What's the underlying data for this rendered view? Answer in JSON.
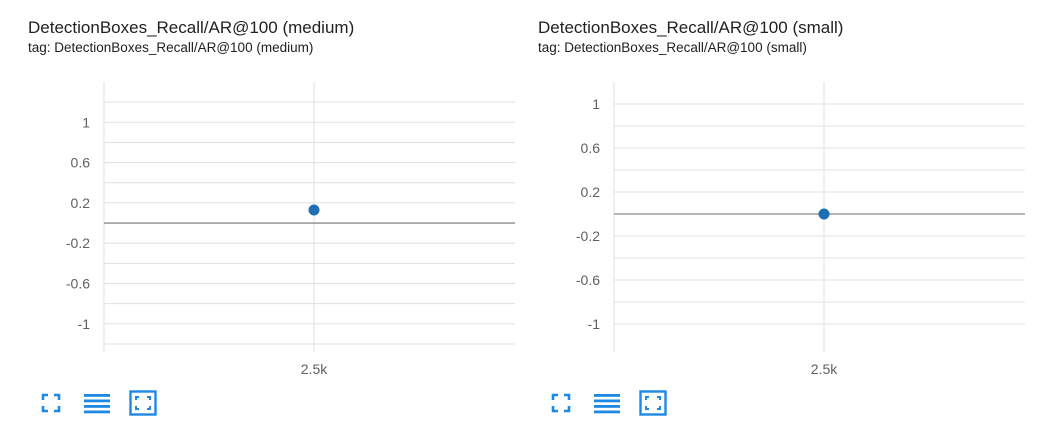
{
  "charts": [
    {
      "title": "DetectionBoxes_Recall/AR@100 (medium)",
      "tag": "tag: DetectionBoxes_Recall/AR@100 (medium)"
    },
    {
      "title": "DetectionBoxes_Recall/AR@100 (small)",
      "tag": "tag: DetectionBoxes_Recall/AR@100 (small)"
    }
  ],
  "controls": {
    "fullscreen_icon": "fullscreen-icon",
    "data_table_icon": "data-table-icon",
    "fit_domain_icon": "fit-domain-icon"
  },
  "colors": {
    "point": "#1f6fb5",
    "grid": "#e0e0e0",
    "zero_line": "#9e9e9e",
    "axis_text": "#616161",
    "icon": "#1e88e5"
  },
  "chart_data": [
    {
      "type": "scatter",
      "title": "DetectionBoxes_Recall/AR@100 (medium)",
      "xlabel": "",
      "ylabel": "",
      "x_ticks": [
        2500
      ],
      "x_tick_labels": [
        "2.5k"
      ],
      "y_ticks": [
        1,
        0.6,
        0.2,
        -0.2,
        -0.6,
        -1
      ],
      "y_tick_labels": [
        "1",
        "0.6",
        "0.2",
        "-0.2",
        "-0.6",
        "-1"
      ],
      "ylim": [
        -1.22,
        1.4
      ],
      "x": [
        2500
      ],
      "y": [
        0.13
      ],
      "grid": true
    },
    {
      "type": "scatter",
      "title": "DetectionBoxes_Recall/AR@100 (small)",
      "xlabel": "",
      "ylabel": "",
      "x_ticks": [
        2500
      ],
      "x_tick_labels": [
        "2.5k"
      ],
      "y_ticks": [
        1,
        0.6,
        0.2,
        -0.2,
        -0.6,
        -1
      ],
      "y_tick_labels": [
        "1",
        "0.6",
        "0.2",
        "-0.2",
        "-0.6",
        "-1"
      ],
      "ylim": [
        -1.2,
        1.2
      ],
      "x": [
        2500
      ],
      "y": [
        0
      ],
      "grid": true
    }
  ]
}
